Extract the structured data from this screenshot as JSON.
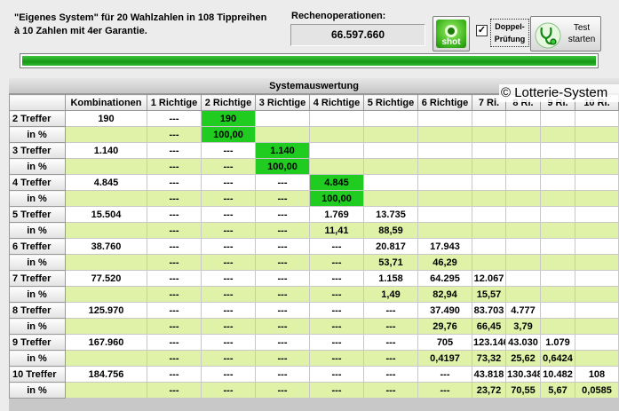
{
  "header": {
    "description": "\"Eigenes System\" für 20 Wahlzahlen in 108 Tippreihen à 10 Zahlen mit 4er Garantie.",
    "ops_label": "Rechenoperationen:",
    "ops_value": "66.597.660",
    "shot_label": "shot",
    "doppel_label_1": "Doppel-",
    "doppel_label_2": "Prüfung",
    "doppel_checked": "✓",
    "test_label_1": "Test",
    "test_label_2": "starten",
    "progress": 1.0
  },
  "eval": {
    "title": "Systemauswertung",
    "copyright": "© Lotterie-System",
    "columns": [
      "",
      "Kombinationen",
      "1 Richtige",
      "2 Richtige",
      "3 Richtige",
      "4 Richtige",
      "5 Richtige",
      "6 Richtige",
      "7 Ri.",
      "8 Ri.",
      "9 Ri.",
      "10 Ri."
    ],
    "rows": [
      {
        "label": "2 Treffer",
        "cells": [
          "190",
          "---",
          "190",
          "",
          "",
          "",
          "",
          "",
          "",
          "",
          ""
        ],
        "hl": [
          2
        ]
      },
      {
        "label": "in %",
        "cells": [
          "",
          "---",
          "100,00",
          "",
          "",
          "",
          "",
          "",
          "",
          "",
          ""
        ],
        "hl": [
          2
        ]
      },
      {
        "label": "3 Treffer",
        "cells": [
          "1.140",
          "---",
          "---",
          "1.140",
          "",
          "",
          "",
          "",
          "",
          "",
          ""
        ],
        "hl": [
          3
        ]
      },
      {
        "label": "in %",
        "cells": [
          "",
          "---",
          "---",
          "100,00",
          "",
          "",
          "",
          "",
          "",
          "",
          ""
        ],
        "hl": [
          3
        ]
      },
      {
        "label": "4 Treffer",
        "cells": [
          "4.845",
          "---",
          "---",
          "---",
          "4.845",
          "",
          "",
          "",
          "",
          "",
          ""
        ],
        "hl": [
          4
        ]
      },
      {
        "label": "in %",
        "cells": [
          "",
          "---",
          "---",
          "---",
          "100,00",
          "",
          "",
          "",
          "",
          "",
          ""
        ],
        "hl": [
          4
        ]
      },
      {
        "label": "5 Treffer",
        "cells": [
          "15.504",
          "---",
          "---",
          "---",
          "1.769",
          "13.735",
          "",
          "",
          "",
          "",
          ""
        ],
        "hl": []
      },
      {
        "label": "in %",
        "cells": [
          "",
          "---",
          "---",
          "---",
          "11,41",
          "88,59",
          "",
          "",
          "",
          "",
          ""
        ],
        "hl": []
      },
      {
        "label": "6 Treffer",
        "cells": [
          "38.760",
          "---",
          "---",
          "---",
          "---",
          "20.817",
          "17.943",
          "",
          "",
          "",
          ""
        ],
        "hl": []
      },
      {
        "label": "in %",
        "cells": [
          "",
          "---",
          "---",
          "---",
          "---",
          "53,71",
          "46,29",
          "",
          "",
          "",
          ""
        ],
        "hl": []
      },
      {
        "label": "7 Treffer",
        "cells": [
          "77.520",
          "---",
          "---",
          "---",
          "---",
          "1.158",
          "64.295",
          "12.067",
          "",
          "",
          ""
        ],
        "hl": []
      },
      {
        "label": "in %",
        "cells": [
          "",
          "---",
          "---",
          "---",
          "---",
          "1,49",
          "82,94",
          "15,57",
          "",
          "",
          ""
        ],
        "hl": []
      },
      {
        "label": "8 Treffer",
        "cells": [
          "125.970",
          "---",
          "---",
          "---",
          "---",
          "---",
          "37.490",
          "83.703",
          "4.777",
          "",
          ""
        ],
        "hl": []
      },
      {
        "label": "in %",
        "cells": [
          "",
          "---",
          "---",
          "---",
          "---",
          "---",
          "29,76",
          "66,45",
          "3,79",
          "",
          ""
        ],
        "hl": []
      },
      {
        "label": "9 Treffer",
        "cells": [
          "167.960",
          "---",
          "---",
          "---",
          "---",
          "---",
          "705",
          "123.146",
          "43.030",
          "1.079",
          ""
        ],
        "hl": []
      },
      {
        "label": "in %",
        "cells": [
          "",
          "---",
          "---",
          "---",
          "---",
          "---",
          "0,4197",
          "73,32",
          "25,62",
          "0,6424",
          ""
        ],
        "hl": []
      },
      {
        "label": "10 Treffer",
        "cells": [
          "184.756",
          "---",
          "---",
          "---",
          "---",
          "---",
          "---",
          "43.818",
          "130.348",
          "10.482",
          "108"
        ],
        "hl": []
      },
      {
        "label": "in %",
        "cells": [
          "",
          "---",
          "---",
          "---",
          "---",
          "---",
          "---",
          "23,72",
          "70,55",
          "5,67",
          "0,0585"
        ],
        "hl": []
      }
    ]
  }
}
